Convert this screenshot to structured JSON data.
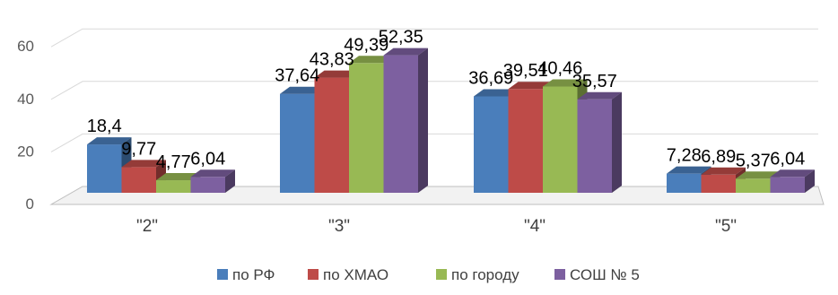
{
  "chart_data": {
    "type": "bar",
    "categories": [
      "\"2\"",
      "\"3\"",
      "\"4\"",
      "\"5\""
    ],
    "series": [
      {
        "name": "по РФ",
        "color": "#4a7ebb",
        "values": [
          18.4,
          37.64,
          36.69,
          7.28
        ]
      },
      {
        "name": "по ХМАО",
        "color": "#be4b48",
        "values": [
          9.77,
          43.83,
          39.51,
          6.89
        ]
      },
      {
        "name": "по городу",
        "color": "#98b954",
        "values": [
          4.77,
          49.39,
          40.46,
          5.37
        ]
      },
      {
        "name": "СОШ № 5",
        "color": "#7d60a0",
        "values": [
          6.04,
          52.35,
          35.57,
          6.04
        ]
      }
    ],
    "data_labels": [
      [
        "18,4",
        "37,64",
        "36,69",
        "7,28"
      ],
      [
        "9,77",
        "43,83",
        "39,51",
        "6,89"
      ],
      [
        "4,77",
        "49,39",
        "40,46",
        "5,37"
      ],
      [
        "6,04",
        "52,35",
        "35,57",
        "6,04"
      ]
    ],
    "yticks": [
      "0",
      "20",
      "40",
      "60"
    ],
    "ylim": [
      0,
      60
    ],
    "grid": true,
    "legend": "bottom",
    "three_d": true
  }
}
